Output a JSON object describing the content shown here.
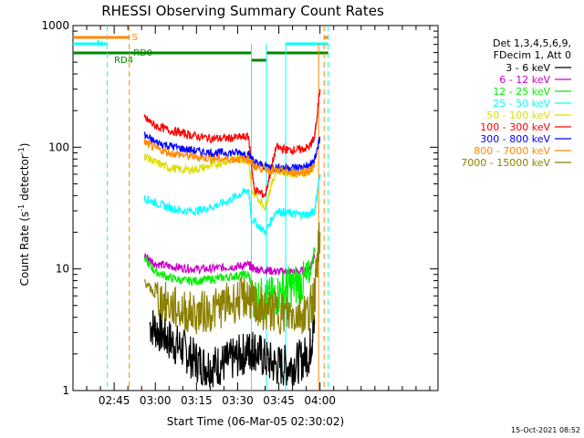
{
  "chart_data": {
    "type": "line",
    "title": "RHESSI Observing Summary Count Rates",
    "xlabel": "Start Time (06-Mar-05 02:30:02)",
    "ylabel_main": "Count Rate (s",
    "ylabel_sup1": "-1",
    "ylabel_mid": " detector",
    "ylabel_sup2": "-1",
    "ylabel_end": ")",
    "yscale": "log",
    "ylim": [
      1,
      1000
    ],
    "xlim_min": [
      30,
      163
    ],
    "y_ticks": [
      "1",
      "10",
      "100",
      "1000"
    ],
    "x_ticks": [
      {
        "label": "02:45",
        "min": 45
      },
      {
        "label": "03:00",
        "min": 60
      },
      {
        "label": "03:15",
        "min": 75
      },
      {
        "label": "03:30",
        "min": 90
      },
      {
        "label": "03:45",
        "min": 105
      },
      {
        "label": "04:00",
        "min": 120
      }
    ],
    "legend_header": [
      "Det 1,3,4,5,6,9,",
      "FDecim 1, Att 0"
    ],
    "series": [
      {
        "name": "3 - 6 keV",
        "color": "#000000",
        "x": [
          58,
          62,
          66,
          70,
          74,
          78,
          82,
          86,
          90,
          94,
          96,
          100,
          104,
          108,
          112,
          116,
          118
        ],
        "y": [
          3.5,
          3.0,
          2.5,
          2.2,
          1.8,
          1.6,
          1.6,
          1.7,
          1.9,
          2.1,
          2.2,
          1.8,
          1.6,
          1.6,
          1.7,
          2.0,
          3.5
        ]
      },
      {
        "name": "6 - 12 keV",
        "color": "#cc00cc",
        "x": [
          56,
          60,
          65,
          70,
          75,
          80,
          85,
          90,
          94,
          96,
          100,
          104,
          108,
          112,
          116,
          118
        ],
        "y": [
          13,
          11,
          10.5,
          10.2,
          10,
          10,
          10.3,
          10.5,
          10.8,
          10,
          9.8,
          9.5,
          9.5,
          9.5,
          10,
          13
        ]
      },
      {
        "name": "12 - 25 keV",
        "color": "#00ee00",
        "x": [
          56,
          60,
          65,
          70,
          75,
          80,
          85,
          90,
          94,
          96,
          100,
          104,
          108,
          112,
          116,
          118
        ],
        "y": [
          12,
          9.5,
          8.5,
          8.0,
          8.0,
          8.2,
          8.5,
          8.8,
          9.0,
          6.0,
          5.5,
          6.0,
          7.0,
          7.5,
          8.0,
          15
        ]
      },
      {
        "name": "25 - 50 keV",
        "color": "#00ffff",
        "x": [
          56,
          60,
          65,
          70,
          75,
          80,
          85,
          90,
          94,
          95,
          100,
          104,
          108,
          112,
          116,
          118,
          120
        ],
        "y": [
          38,
          35,
          32,
          30,
          30,
          32,
          35,
          40,
          45,
          26,
          20,
          30,
          29,
          28,
          28,
          30,
          60
        ]
      },
      {
        "name": "50 - 100 keV",
        "color": "#dddd00",
        "x": [
          56,
          60,
          65,
          70,
          75,
          80,
          85,
          90,
          94,
          95,
          100,
          104,
          108,
          112,
          116,
          118
        ],
        "y": [
          85,
          75,
          68,
          65,
          66,
          70,
          76,
          80,
          80,
          45,
          32,
          65,
          62,
          60,
          62,
          70
        ]
      },
      {
        "name": "100 - 300 keV",
        "color": "#ff0000",
        "x": [
          56,
          60,
          65,
          70,
          75,
          80,
          85,
          90,
          94,
          96,
          100,
          104,
          108,
          112,
          116,
          118,
          120
        ],
        "y": [
          175,
          150,
          138,
          130,
          123,
          118,
          118,
          120,
          122,
          45,
          40,
          100,
          95,
          95,
          100,
          120,
          300
        ]
      },
      {
        "name": "300 - 800 keV",
        "color": "#0000ff",
        "x": [
          56,
          60,
          65,
          70,
          75,
          80,
          85,
          90,
          94,
          96,
          100,
          104,
          108,
          112,
          116,
          118,
          120
        ],
        "y": [
          125,
          110,
          103,
          97,
          93,
          90,
          90,
          90,
          88,
          75,
          70,
          68,
          68,
          68,
          70,
          78,
          120
        ]
      },
      {
        "name": "800 - 7000 keV",
        "color": "#ff8800",
        "x": [
          56,
          60,
          65,
          70,
          75,
          80,
          85,
          90,
          94,
          96,
          100,
          104,
          108,
          112,
          116,
          118
        ],
        "y": [
          110,
          98,
          90,
          86,
          83,
          81,
          80,
          80,
          80,
          70,
          66,
          64,
          62,
          62,
          64,
          70
        ]
      },
      {
        "name": "7000 - 15000 keV",
        "color": "#8b8000",
        "x": [
          56,
          60,
          65,
          70,
          75,
          80,
          85,
          90,
          94,
          96,
          100,
          104,
          108,
          112,
          116,
          118,
          120
        ],
        "y": [
          8,
          6.0,
          5.0,
          4.5,
          4.3,
          4.5,
          5.0,
          5.5,
          6.0,
          5.0,
          4.5,
          4.5,
          4.2,
          4.3,
          4.5,
          6,
          20
        ]
      }
    ],
    "annotations": {
      "S": "S",
      "N": "N",
      "RD0": "RD0",
      "RD4": "RD4"
    },
    "dashed_lines": [
      {
        "min": 42.5,
        "color": "#00ffff"
      },
      {
        "min": 50.5,
        "color": "#ff8800"
      },
      {
        "min": 121.5,
        "color": "#ff8800"
      },
      {
        "min": 123,
        "color": "#00ffff"
      }
    ],
    "solid_lines": [
      {
        "min": 95,
        "color": "#00ffff"
      },
      {
        "min": 100.5,
        "color": "#00ffff"
      },
      {
        "min": 107.5,
        "color": "#00ffff"
      },
      {
        "min": 119.5,
        "color": "#ff8800"
      }
    ],
    "timestamp": "15-Oct-2021 08:52"
  }
}
